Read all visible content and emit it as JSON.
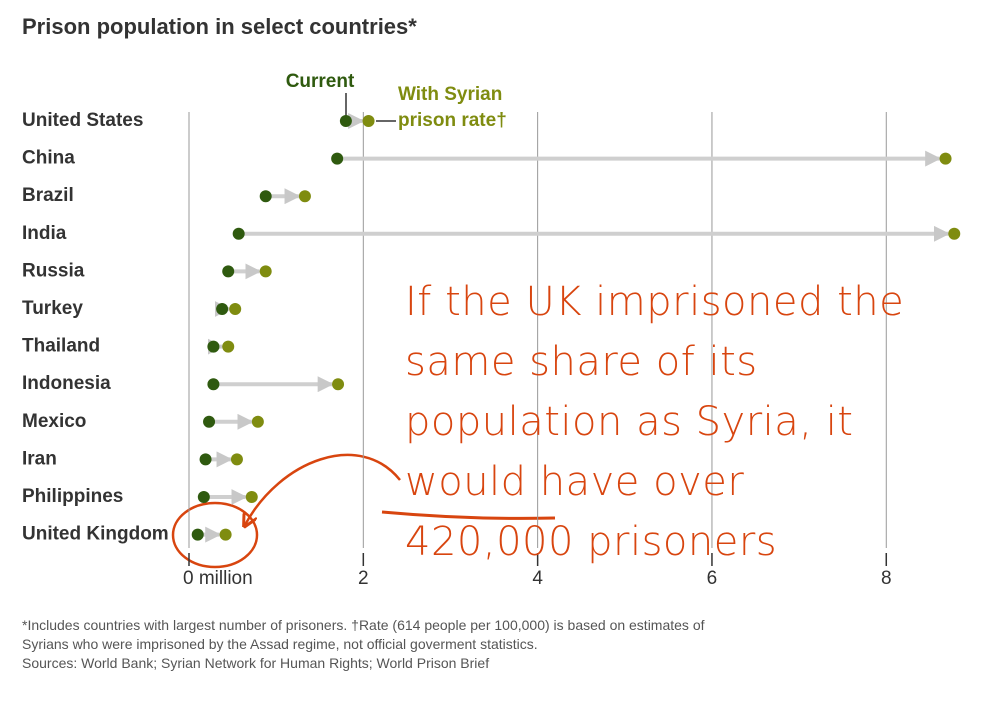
{
  "chart_data": {
    "type": "dumbbell",
    "title": "Prison population in select countries*",
    "categories": [
      "United States",
      "China",
      "Brazil",
      "India",
      "Russia",
      "Turkey",
      "Thailand",
      "Indonesia",
      "Mexico",
      "Iran",
      "Philippines",
      "United Kingdom"
    ],
    "series": [
      {
        "name": "Current",
        "color": "#2f5a0f",
        "values": [
          1.8,
          1.7,
          0.88,
          0.57,
          0.45,
          0.38,
          0.28,
          0.28,
          0.23,
          0.19,
          0.17,
          0.1
        ]
      },
      {
        "name": "With Syrian prison rate†",
        "color": "#7f8c10",
        "values": [
          2.06,
          8.68,
          1.33,
          8.78,
          0.88,
          0.53,
          0.45,
          1.71,
          0.79,
          0.55,
          0.72,
          0.42
        ]
      }
    ],
    "xlim": [
      0,
      8.8
    ],
    "xticks": [
      {
        "value": 0,
        "label": "0 million"
      },
      2,
      4,
      6,
      8
    ],
    "grid": true,
    "annotation": "If the UK imprisoned the same share of its population as Syria, it would have over 420,000 prisoners",
    "footnote": "*Includes countries with largest number of prisoners. †Rate (614 people per 100,000) is based on estimates of Syrians who were imprisoned by the Assad regime, not official goverment statistics.",
    "sources": "Sources: World Bank; Syrian Network for Human Rights; World Prison Brief"
  }
}
